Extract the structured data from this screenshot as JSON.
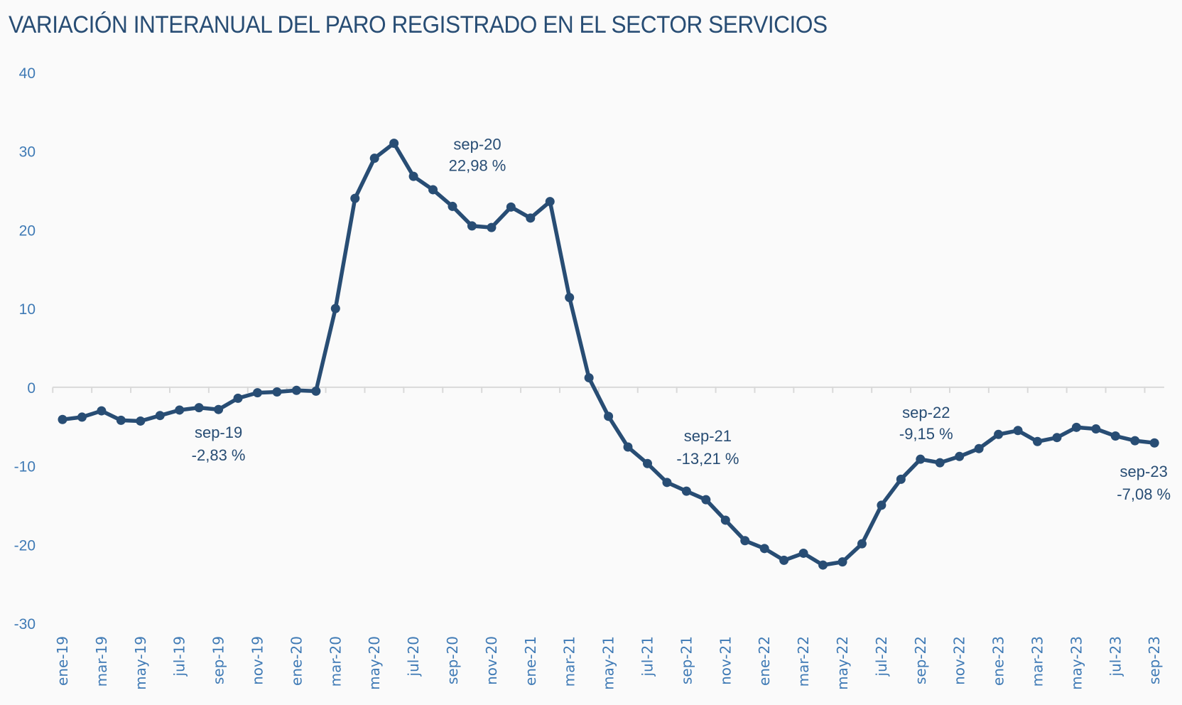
{
  "chart_data": {
    "type": "line",
    "title": "VARIACIÓN INTERANUAL DEL PARO REGISTRADO EN EL SECTOR SERVICIOS",
    "xlabel": "",
    "ylabel": "",
    "ylim": [
      -30,
      40
    ],
    "yticks": [
      "40",
      "30",
      "20",
      "10",
      "0",
      "-10",
      "-20",
      "-30"
    ],
    "ytick_values": [
      40,
      30,
      20,
      10,
      0,
      -10,
      -20,
      -30
    ],
    "grid": false,
    "legend": "none",
    "colors": {
      "line": "#284d74",
      "axis": "#d9d9d9",
      "tick_label": "#3f7ab5",
      "annotation": "#284d74",
      "background": "#fafafa"
    },
    "x": [
      "ene-19",
      "feb-19",
      "mar-19",
      "abr-19",
      "may-19",
      "jun-19",
      "jul-19",
      "ago-19",
      "sep-19",
      "oct-19",
      "nov-19",
      "dic-19",
      "ene-20",
      "feb-20",
      "mar-20",
      "abr-20",
      "may-20",
      "jun-20",
      "jul-20",
      "ago-20",
      "sep-20",
      "oct-20",
      "nov-20",
      "dic-20",
      "ene-21",
      "feb-21",
      "mar-21",
      "abr-21",
      "may-21",
      "jun-21",
      "jul-21",
      "ago-21",
      "sep-21",
      "oct-21",
      "nov-21",
      "dic-21",
      "ene-22",
      "feb-22",
      "mar-22",
      "abr-22",
      "may-22",
      "jun-22",
      "jul-22",
      "ago-22",
      "sep-22",
      "oct-22",
      "nov-22",
      "dic-22",
      "ene-23",
      "feb-23",
      "mar-23",
      "abr-23",
      "may-23",
      "jun-23",
      "jul-23",
      "ago-23",
      "sep-23"
    ],
    "xtick_labels": [
      "ene-19",
      "mar-19",
      "may-19",
      "jul-19",
      "sep-19",
      "nov-19",
      "ene-20",
      "mar-20",
      "may-20",
      "jul-20",
      "sep-20",
      "nov-20",
      "ene-21",
      "mar-21",
      "may-21",
      "jul-21",
      "sep-21",
      "nov-21",
      "ene-22",
      "mar-22",
      "may-22",
      "jul-22",
      "sep-22",
      "nov-22",
      "ene-23",
      "mar-23",
      "may-23",
      "jul-23",
      "sep-23"
    ],
    "series": [
      {
        "name": "Variación interanual (%)",
        "values": [
          -4.1,
          -3.8,
          -3.0,
          -4.2,
          -4.3,
          -3.6,
          -2.9,
          -2.6,
          -2.83,
          -1.4,
          -0.7,
          -0.6,
          -0.4,
          -0.5,
          10.0,
          24.0,
          29.1,
          31.0,
          26.8,
          25.1,
          22.98,
          20.5,
          20.3,
          22.9,
          21.5,
          23.6,
          11.4,
          1.2,
          -3.7,
          -7.6,
          -9.7,
          -12.1,
          -13.21,
          -14.3,
          -16.9,
          -19.5,
          -20.5,
          -22.0,
          -21.1,
          -22.6,
          -22.2,
          -19.9,
          -15.0,
          -11.7,
          -9.15,
          -9.6,
          -8.8,
          -7.8,
          -6.0,
          -5.5,
          -6.9,
          -6.4,
          -5.1,
          -5.3,
          -6.2,
          -6.8,
          -7.08
        ]
      }
    ],
    "annotations": [
      {
        "index": 8,
        "label": "sep-19",
        "value_text": "-2,83 %",
        "position": "below"
      },
      {
        "index": 20,
        "label": "sep-20",
        "value_text": "22,98 %",
        "position": "above-right"
      },
      {
        "index": 32,
        "label": "sep-21",
        "value_text": "-13,21 %",
        "position": "above-right"
      },
      {
        "index": 44,
        "label": "sep-22",
        "value_text": "-9,15 %",
        "position": "above"
      },
      {
        "index": 56,
        "label": "sep-23",
        "value_text": "-7,08 %",
        "position": "below"
      }
    ]
  }
}
